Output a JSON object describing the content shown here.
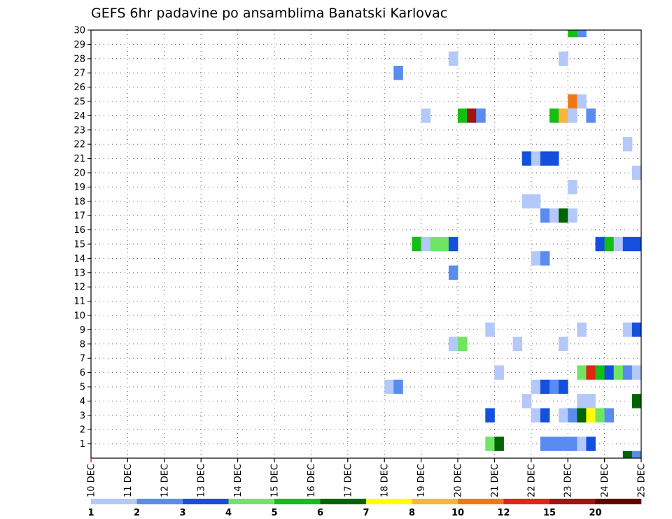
{
  "chart_data": {
    "type": "heatmap",
    "title": "GEFS 6hr padavine po ansamblima Banatski Karlovac",
    "x_ticks": [
      "10 DEC",
      "11 DEC",
      "12 DEC",
      "13 DEC",
      "14 DEC",
      "15 DEC",
      "16 DEC",
      "17 DEC",
      "18 DEC",
      "19 DEC",
      "20 DEC",
      "21 DEC",
      "22 DEC",
      "23 DEC",
      "24 DEC",
      "25 DEC"
    ],
    "y_ticks": [
      "1",
      "2",
      "3",
      "4",
      "5",
      "6",
      "7",
      "8",
      "9",
      "10",
      "11",
      "12",
      "13",
      "14",
      "15",
      "16",
      "17",
      "18",
      "19",
      "20",
      "21",
      "22",
      "23",
      "24",
      "25",
      "26",
      "27",
      "28",
      "29",
      "30"
    ],
    "x_range": [
      "10 DEC 00Z",
      "25 DEC 00Z"
    ],
    "time_step": "6hr",
    "member_range": [
      0,
      30
    ],
    "grid": "dotted",
    "legend": {
      "position": "bottom",
      "labels": [
        "1",
        "2",
        "3",
        "4",
        "5",
        "6",
        "7",
        "8",
        "10",
        "12",
        "15",
        "20"
      ],
      "colors": [
        "#b4c8fa",
        "#5a8cf0",
        "#1450dc",
        "#6ee664",
        "#14be14",
        "#006400",
        "#ffff00",
        "#fab43c",
        "#f07814",
        "#dc2814",
        "#a01414",
        "#640000"
      ]
    },
    "cells": [
      {
        "member": 30,
        "day": 23,
        "step": 0,
        "cls": 4
      },
      {
        "member": 30,
        "day": 23,
        "step": 1,
        "cls": 1
      },
      {
        "member": 28,
        "day": 19,
        "step": 3,
        "cls": 0
      },
      {
        "member": 28,
        "day": 22,
        "step": 3,
        "cls": 0
      },
      {
        "member": 27,
        "day": 18,
        "step": 1,
        "cls": 1
      },
      {
        "member": 25,
        "day": 23,
        "step": 0,
        "cls": 8
      },
      {
        "member": 25,
        "day": 23,
        "step": 1,
        "cls": 0
      },
      {
        "member": 24,
        "day": 19,
        "step": 0,
        "cls": 0
      },
      {
        "member": 24,
        "day": 20,
        "step": 0,
        "cls": 4
      },
      {
        "member": 24,
        "day": 20,
        "step": 1,
        "cls": 10
      },
      {
        "member": 24,
        "day": 20,
        "step": 2,
        "cls": 1
      },
      {
        "member": 24,
        "day": 22,
        "step": 2,
        "cls": 4
      },
      {
        "member": 24,
        "day": 22,
        "step": 3,
        "cls": 7
      },
      {
        "member": 24,
        "day": 23,
        "step": 0,
        "cls": 0
      },
      {
        "member": 24,
        "day": 23,
        "step": 2,
        "cls": 1
      },
      {
        "member": 22,
        "day": 24,
        "step": 2,
        "cls": 0
      },
      {
        "member": 21,
        "day": 21,
        "step": 3,
        "cls": 2
      },
      {
        "member": 21,
        "day": 22,
        "step": 0,
        "cls": 0
      },
      {
        "member": 21,
        "day": 22,
        "step": 1,
        "cls": 2
      },
      {
        "member": 21,
        "day": 22,
        "step": 2,
        "cls": 2
      },
      {
        "member": 20,
        "day": 24,
        "step": 3,
        "cls": 0
      },
      {
        "member": 19,
        "day": 23,
        "step": 0,
        "cls": 0
      },
      {
        "member": 18,
        "day": 21,
        "step": 3,
        "cls": 0
      },
      {
        "member": 18,
        "day": 22,
        "step": 0,
        "cls": 0
      },
      {
        "member": 17,
        "day": 22,
        "step": 1,
        "cls": 1
      },
      {
        "member": 17,
        "day": 22,
        "step": 2,
        "cls": 0
      },
      {
        "member": 17,
        "day": 22,
        "step": 3,
        "cls": 5
      },
      {
        "member": 17,
        "day": 23,
        "step": 0,
        "cls": 0
      },
      {
        "member": 15,
        "day": 18,
        "step": 3,
        "cls": 4
      },
      {
        "member": 15,
        "day": 19,
        "step": 0,
        "cls": 0
      },
      {
        "member": 15,
        "day": 19,
        "step": 1,
        "cls": 3
      },
      {
        "member": 15,
        "day": 19,
        "step": 2,
        "cls": 3
      },
      {
        "member": 15,
        "day": 19,
        "step": 3,
        "cls": 2
      },
      {
        "member": 15,
        "day": 23,
        "step": 3,
        "cls": 2
      },
      {
        "member": 15,
        "day": 24,
        "step": 0,
        "cls": 4
      },
      {
        "member": 15,
        "day": 24,
        "step": 1,
        "cls": 0
      },
      {
        "member": 15,
        "day": 24,
        "step": 2,
        "cls": 2
      },
      {
        "member": 15,
        "day": 24,
        "step": 3,
        "cls": 2
      },
      {
        "member": 14,
        "day": 22,
        "step": 0,
        "cls": 0
      },
      {
        "member": 14,
        "day": 22,
        "step": 1,
        "cls": 1
      },
      {
        "member": 13,
        "day": 19,
        "step": 3,
        "cls": 1
      },
      {
        "member": 9,
        "day": 20,
        "step": 3,
        "cls": 0
      },
      {
        "member": 9,
        "day": 23,
        "step": 1,
        "cls": 0
      },
      {
        "member": 9,
        "day": 24,
        "step": 2,
        "cls": 0
      },
      {
        "member": 9,
        "day": 24,
        "step": 3,
        "cls": 2
      },
      {
        "member": 8,
        "day": 19,
        "step": 3,
        "cls": 0
      },
      {
        "member": 8,
        "day": 20,
        "step": 0,
        "cls": 3
      },
      {
        "member": 8,
        "day": 21,
        "step": 2,
        "cls": 0
      },
      {
        "member": 8,
        "day": 22,
        "step": 3,
        "cls": 0
      },
      {
        "member": 6,
        "day": 21,
        "step": 0,
        "cls": 0
      },
      {
        "member": 6,
        "day": 23,
        "step": 1,
        "cls": 3
      },
      {
        "member": 6,
        "day": 23,
        "step": 2,
        "cls": 9
      },
      {
        "member": 6,
        "day": 23,
        "step": 3,
        "cls": 4
      },
      {
        "member": 6,
        "day": 24,
        "step": 0,
        "cls": 2
      },
      {
        "member": 6,
        "day": 24,
        "step": 1,
        "cls": 3
      },
      {
        "member": 6,
        "day": 24,
        "step": 2,
        "cls": 1
      },
      {
        "member": 6,
        "day": 24,
        "step": 3,
        "cls": 0
      },
      {
        "member": 5,
        "day": 18,
        "step": 0,
        "cls": 0
      },
      {
        "member": 5,
        "day": 18,
        "step": 1,
        "cls": 1
      },
      {
        "member": 5,
        "day": 22,
        "step": 0,
        "cls": 0
      },
      {
        "member": 5,
        "day": 22,
        "step": 1,
        "cls": 2
      },
      {
        "member": 5,
        "day": 22,
        "step": 2,
        "cls": 1
      },
      {
        "member": 5,
        "day": 22,
        "step": 3,
        "cls": 2
      },
      {
        "member": 4,
        "day": 21,
        "step": 3,
        "cls": 0
      },
      {
        "member": 4,
        "day": 23,
        "step": 1,
        "cls": 0
      },
      {
        "member": 4,
        "day": 23,
        "step": 2,
        "cls": 0
      },
      {
        "member": 4,
        "day": 24,
        "step": 3,
        "cls": 5
      },
      {
        "member": 3,
        "day": 20,
        "step": 3,
        "cls": 2
      },
      {
        "member": 3,
        "day": 22,
        "step": 0,
        "cls": 0
      },
      {
        "member": 3,
        "day": 22,
        "step": 1,
        "cls": 2
      },
      {
        "member": 3,
        "day": 22,
        "step": 3,
        "cls": 0
      },
      {
        "member": 3,
        "day": 23,
        "step": 0,
        "cls": 1
      },
      {
        "member": 3,
        "day": 23,
        "step": 1,
        "cls": 5
      },
      {
        "member": 3,
        "day": 23,
        "step": 2,
        "cls": 6
      },
      {
        "member": 3,
        "day": 23,
        "step": 3,
        "cls": 3
      },
      {
        "member": 3,
        "day": 24,
        "step": 0,
        "cls": 1
      },
      {
        "member": 1,
        "day": 20,
        "step": 3,
        "cls": 3
      },
      {
        "member": 1,
        "day": 21,
        "step": 0,
        "cls": 5
      },
      {
        "member": 1,
        "day": 22,
        "step": 1,
        "cls": 1
      },
      {
        "member": 1,
        "day": 22,
        "step": 2,
        "cls": 1
      },
      {
        "member": 1,
        "day": 22,
        "step": 3,
        "cls": 1
      },
      {
        "member": 1,
        "day": 23,
        "step": 0,
        "cls": 1
      },
      {
        "member": 1,
        "day": 23,
        "step": 1,
        "cls": 0
      },
      {
        "member": 1,
        "day": 23,
        "step": 2,
        "cls": 2
      },
      {
        "member": 0,
        "day": 24,
        "step": 2,
        "cls": 5
      },
      {
        "member": 0,
        "day": 24,
        "step": 3,
        "cls": 1
      }
    ]
  }
}
